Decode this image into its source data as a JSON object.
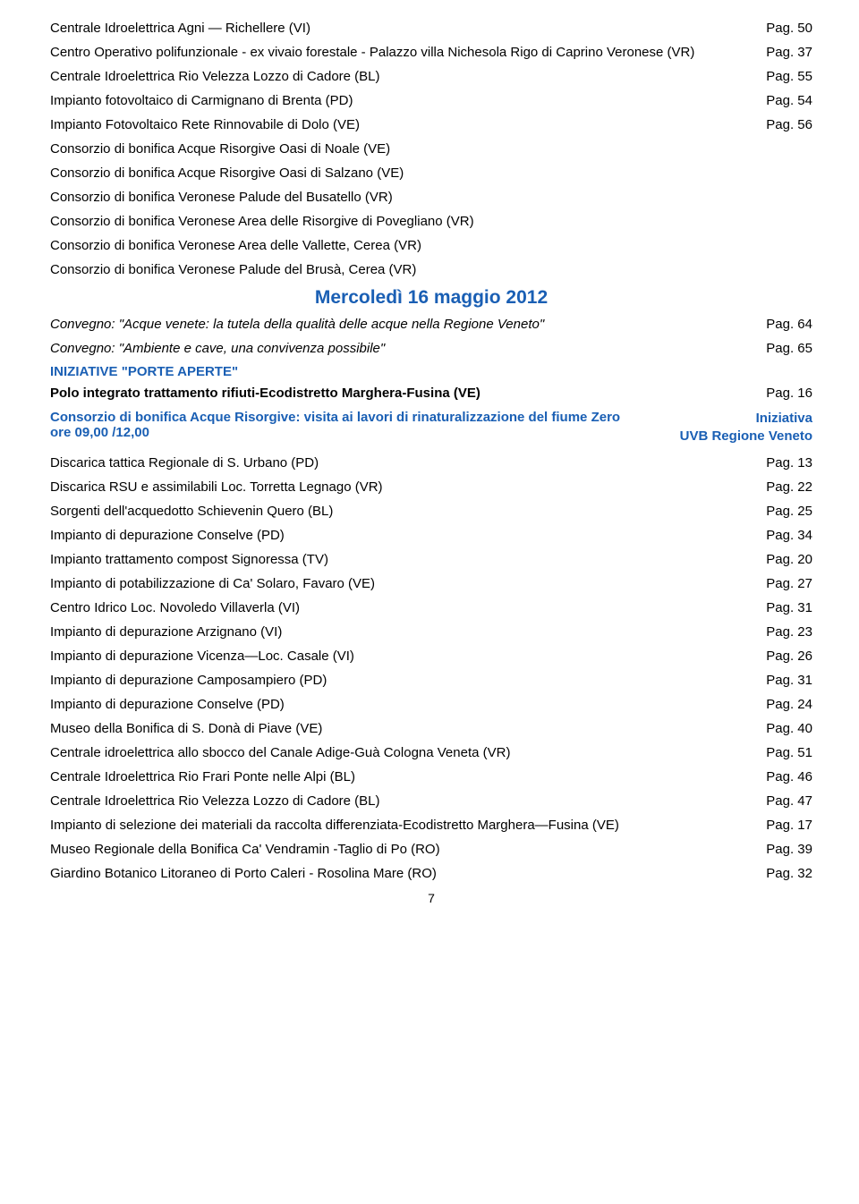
{
  "rows_top": [
    {
      "left": "Centrale Idroelettrica Agni — Richellere  (VI)",
      "right": "Pag. 50"
    },
    {
      "left": "Centro Operativo polifunzionale - ex vivaio forestale - Palazzo villa Nichesola Rigo di Caprino Veronese (VR)",
      "right": "Pag. 37"
    },
    {
      "left": "Centrale Idroelettrica Rio Velezza Lozzo di Cadore (BL)",
      "right": "Pag. 55"
    },
    {
      "left": "Impianto fotovoltaico di Carmignano di Brenta (PD)",
      "right": "Pag. 54"
    },
    {
      "left": "Impianto Fotovoltaico Rete Rinnovabile di Dolo (VE)",
      "right": "Pag. 56"
    },
    {
      "left": "Consorzio di bonifica Acque Risorgive Oasi di Noale (VE)",
      "right": ""
    },
    {
      "left": "Consorzio di bonifica Acque Risorgive Oasi di Salzano (VE)",
      "right": ""
    },
    {
      "left": "Consorzio di bonifica Veronese Palude del Busatello (VR)",
      "right": ""
    },
    {
      "left": "Consorzio di bonifica Veronese Area delle Risorgive di Povegliano (VR)",
      "right": ""
    },
    {
      "left": "Consorzio di bonifica Veronese Area delle Vallette, Cerea (VR)",
      "right": ""
    },
    {
      "left": "Consorzio di bonifica Veronese Palude del Brusà, Cerea (VR)",
      "right": ""
    }
  ],
  "section_header": "Mercoledì 16 maggio 2012",
  "convegni": [
    {
      "left": "Convegno: \"Acque venete: la tutela della qualità delle acque nella Regione Veneto\"",
      "right": "Pag. 64"
    },
    {
      "left": "Convegno: \"Ambiente e cave, una convivenza possibile\"",
      "right": "Pag. 65"
    }
  ],
  "iniziative_label": "INIZIATIVE \"PORTE APERTE\"",
  "polo": {
    "left": "Polo integrato trattamento rifiuti-Ecodistretto Marghera-Fusina (VE)",
    "right": "Pag. 16"
  },
  "consorzio_blue": {
    "left": "Consorzio di bonifica Acque Risorgive: visita ai lavori di rinaturalizzazione del fiume Zero ore 09,00 /12,00",
    "right_line1": "Iniziativa",
    "right_line2": "UVB Regione Veneto"
  },
  "rows_bottom": [
    {
      "left": "Discarica tattica Regionale di S. Urbano (PD)",
      "right": "Pag. 13"
    },
    {
      "left": "Discarica RSU e assimilabili Loc. Torretta Legnago  (VR)",
      "right": "Pag. 22"
    },
    {
      "left": "Sorgenti dell'acquedotto Schievenin Quero (BL)",
      "right": "Pag. 25"
    },
    {
      "left": "Impianto di depurazione Conselve (PD)",
      "right": "Pag. 34"
    },
    {
      "left": "Impianto trattamento compost Signoressa (TV)",
      "right": "Pag. 20"
    },
    {
      "left": "Impianto di potabilizzazione di Ca' Solaro, Favaro (VE)",
      "right": "Pag. 27"
    },
    {
      "left": "Centro Idrico Loc. Novoledo Villaverla (VI)",
      "right": "Pag. 31"
    },
    {
      "left": "Impianto di depurazione Arzignano (VI)",
      "right": "Pag. 23"
    },
    {
      "left": "Impianto di depurazione Vicenza—Loc. Casale (VI)",
      "right": "Pag. 26"
    },
    {
      "left": "Impianto di depurazione Camposampiero (PD)",
      "right": "Pag. 31"
    },
    {
      "left": "Impianto di depurazione Conselve (PD)",
      "right": "Pag. 24"
    },
    {
      "left": "Museo della Bonifica di S. Donà di Piave (VE)",
      "right": "Pag. 40"
    },
    {
      "left": "Centrale idroelettrica allo sbocco del Canale Adige-Guà Cologna Veneta (VR)",
      "right": "Pag. 51"
    },
    {
      "left": "Centrale Idroelettrica Rio Frari Ponte nelle Alpi (BL)",
      "right": "Pag. 46"
    },
    {
      "left": "Centrale Idroelettrica Rio Velezza Lozzo di Cadore (BL)",
      "right": "Pag. 47"
    },
    {
      "left": "Impianto di selezione dei materiali da raccolta differenziata-Ecodistretto Marghera—Fusina (VE)",
      "right": "Pag. 17"
    },
    {
      "left": "Museo Regionale della Bonifica Ca' Vendramin -Taglio di Po (RO)",
      "right": "Pag. 39"
    },
    {
      "left": "Giardino Botanico Litoraneo di Porto Caleri - Rosolina Mare (RO)",
      "right": "Pag. 32"
    }
  ],
  "page_number": "7"
}
